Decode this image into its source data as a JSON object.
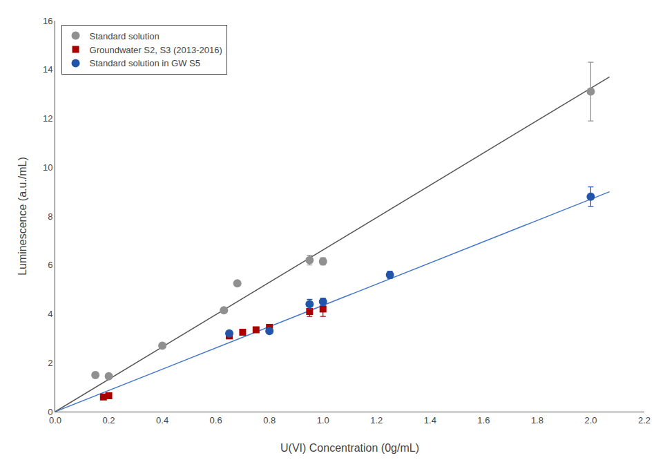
{
  "chart_data": {
    "type": "scatter",
    "xlabel": "U(VI) Concentration (0g/mL)",
    "ylabel": "Luminescence (a.u./mL)",
    "xlim": [
      0.0,
      2.2
    ],
    "ylim": [
      0,
      16
    ],
    "xticks": [
      {
        "value": 0.0,
        "label": "0.0"
      },
      0.2,
      0.4,
      0.6,
      0.8,
      {
        "value": 1.0,
        "label": "1.0"
      },
      1.2,
      1.4,
      1.6,
      1.8,
      {
        "value": 2.0,
        "label": "2.0"
      },
      2.2
    ],
    "yticks": [
      0,
      2,
      4,
      6,
      8,
      10,
      12,
      14,
      16
    ],
    "grid": false,
    "legend": "upper left",
    "series": [
      {
        "type": "line",
        "line_style": "solid",
        "color": "#555555",
        "x": [
          0.0,
          2.07
        ],
        "values": [
          0.0,
          13.7
        ]
      },
      {
        "type": "line",
        "line_style": "solid",
        "color": "#4477CC",
        "x": [
          0.0,
          2.07
        ],
        "values": [
          0.0,
          9.0
        ]
      },
      {
        "type": "scatter",
        "name": "Standard solution",
        "marker": "circle",
        "color": "#909090",
        "x": [
          0.15,
          0.2,
          0.4,
          0.63,
          0.68,
          0.95,
          1.0,
          2.0
        ],
        "values": [
          1.5,
          1.45,
          2.7,
          4.15,
          5.25,
          6.2,
          6.15,
          13.1
        ],
        "yerr": [
          0,
          0,
          0,
          0,
          0,
          0.2,
          0.15,
          1.2
        ]
      },
      {
        "type": "scatter",
        "name": "Groundwater S2, S3 (2013-2016)",
        "marker": "square",
        "color": "#AA0000",
        "x": [
          0.18,
          0.2,
          0.65,
          0.7,
          0.75,
          0.8,
          0.95,
          1.0
        ],
        "values": [
          0.6,
          0.65,
          3.1,
          3.25,
          3.35,
          3.45,
          4.1,
          4.2
        ],
        "yerr": [
          0,
          0,
          0,
          0,
          0,
          0,
          0.2,
          0.3
        ]
      },
      {
        "type": "scatter",
        "name": "Standard solution in GW S5",
        "marker": "circle",
        "color": "#2255AA",
        "x": [
          0.65,
          0.8,
          0.95,
          1.0,
          1.25,
          2.0
        ],
        "values": [
          3.2,
          3.3,
          4.4,
          4.5,
          5.6,
          8.8
        ],
        "yerr": [
          0,
          0,
          0.2,
          0.15,
          0.15,
          0.4
        ]
      }
    ]
  }
}
